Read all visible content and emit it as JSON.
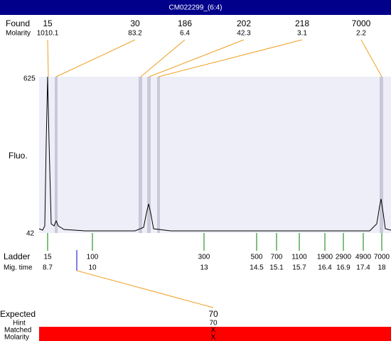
{
  "header": {
    "title": "CM022299_(6:4)"
  },
  "found": {
    "label": "Found",
    "molarity_label": "Molarity",
    "peaks": [
      {
        "size": 15,
        "molarity": 1010.1
      },
      {
        "size": 30,
        "molarity": 83.2
      },
      {
        "size": 186,
        "molarity": 6.4
      },
      {
        "size": 202,
        "molarity": 42.3
      },
      {
        "size": 218,
        "molarity": 3.1
      },
      {
        "size": 7000,
        "molarity": 2.2
      }
    ]
  },
  "plot": {
    "y_label": "Fluo.",
    "y_top": 625,
    "y_bottom": 42
  },
  "ladder": {
    "label": "Ladder",
    "time_label": "Mig. time",
    "points": [
      {
        "size": 15,
        "time": 8.7
      },
      {
        "size": 100,
        "time": 10
      },
      {
        "size": 300,
        "time": 13
      },
      {
        "size": 500,
        "time": 14.5
      },
      {
        "size": 700,
        "time": 15.1
      },
      {
        "size": 1100,
        "time": 15.7
      },
      {
        "size": 1900,
        "time": 16.4
      },
      {
        "size": 2900,
        "time": 16.9
      },
      {
        "size": 4900,
        "time": 17.4
      },
      {
        "size": 7000,
        "time": 18
      }
    ]
  },
  "expected": {
    "label": "Expected",
    "value": 70
  },
  "hint": {
    "label": "Hint",
    "value": 70
  },
  "matched": {
    "label": "Matched",
    "value": "X"
  },
  "molarity": {
    "label": "Molarity",
    "value": "X"
  }
}
